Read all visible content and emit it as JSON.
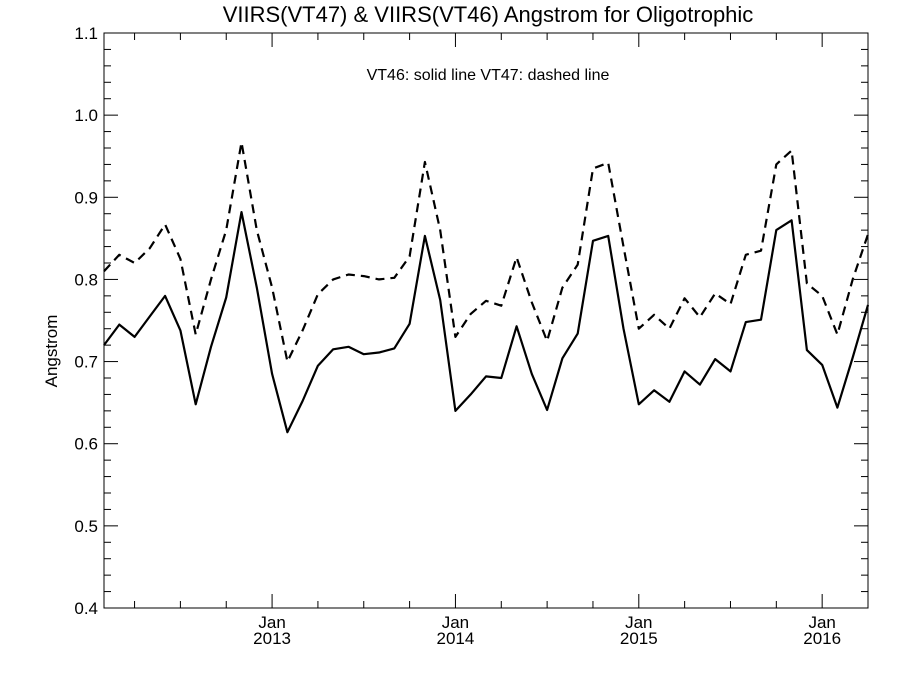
{
  "chart_data": {
    "type": "line",
    "title": "VIIRS(VT47) & VIIRS(VT46)  Angstrom for Oligotrophic",
    "annotation": "VT46: solid line   VT47: dashed line",
    "xlabel": "",
    "ylabel": "Angstrom",
    "ylim": [
      0.4,
      1.1
    ],
    "yticks": [
      "0.4",
      "0.5",
      "0.6",
      "0.7",
      "0.8",
      "0.9",
      "1.0",
      "1.1"
    ],
    "xlim": [
      "2012-02",
      "2016-04"
    ],
    "xtick_labels": [
      {
        "date": "2013-01",
        "month": "Jan",
        "year": "2013"
      },
      {
        "date": "2014-01",
        "month": "Jan",
        "year": "2014"
      },
      {
        "date": "2015-01",
        "month": "Jan",
        "year": "2015"
      },
      {
        "date": "2016-01",
        "month": "Jan",
        "year": "2016"
      }
    ],
    "x": [
      "2012-02",
      "2012-03",
      "2012-04",
      "2012-05",
      "2012-06",
      "2012-07",
      "2012-08",
      "2012-09",
      "2012-10",
      "2012-11",
      "2012-12",
      "2013-01",
      "2013-02",
      "2013-03",
      "2013-04",
      "2013-05",
      "2013-06",
      "2013-07",
      "2013-08",
      "2013-09",
      "2013-10",
      "2013-11",
      "2013-12",
      "2014-01",
      "2014-02",
      "2014-03",
      "2014-04",
      "2014-05",
      "2014-06",
      "2014-07",
      "2014-08",
      "2014-09",
      "2014-10",
      "2014-11",
      "2014-12",
      "2015-01",
      "2015-02",
      "2015-03",
      "2015-04",
      "2015-05",
      "2015-06",
      "2015-07",
      "2015-08",
      "2015-09",
      "2015-10",
      "2015-11",
      "2015-12",
      "2016-01",
      "2016-02",
      "2016-03",
      "2016-04"
    ],
    "series": [
      {
        "style": "solid",
        "values": [
          0.72,
          0.745,
          0.73,
          0.755,
          0.78,
          0.738,
          0.648,
          0.718,
          0.778,
          0.882,
          0.79,
          0.685,
          0.614,
          0.652,
          0.695,
          0.715,
          0.718,
          0.709,
          0.711,
          0.716,
          0.746,
          0.853,
          0.775,
          0.64,
          0.66,
          0.682,
          0.68,
          0.743,
          0.685,
          0.641,
          0.704,
          0.734,
          0.847,
          0.853,
          0.74,
          0.648,
          0.665,
          0.651,
          0.688,
          0.672,
          0.703,
          0.688,
          0.748,
          0.751,
          0.86,
          0.872,
          0.714,
          0.696,
          0.644,
          0.705,
          0.769
        ]
      },
      {
        "style": "dashed",
        "values": [
          0.81,
          0.83,
          0.82,
          0.838,
          0.867,
          0.825,
          0.733,
          0.8,
          0.86,
          0.967,
          0.86,
          0.79,
          0.7,
          0.738,
          0.782,
          0.8,
          0.806,
          0.804,
          0.8,
          0.802,
          0.828,
          0.943,
          0.86,
          0.73,
          0.758,
          0.774,
          0.768,
          0.827,
          0.772,
          0.725,
          0.79,
          0.818,
          0.935,
          0.942,
          0.84,
          0.74,
          0.757,
          0.74,
          0.777,
          0.754,
          0.783,
          0.77,
          0.83,
          0.835,
          0.94,
          0.957,
          0.795,
          0.78,
          0.733,
          0.8,
          0.855
        ]
      }
    ],
    "grid": false,
    "legend": "none"
  }
}
